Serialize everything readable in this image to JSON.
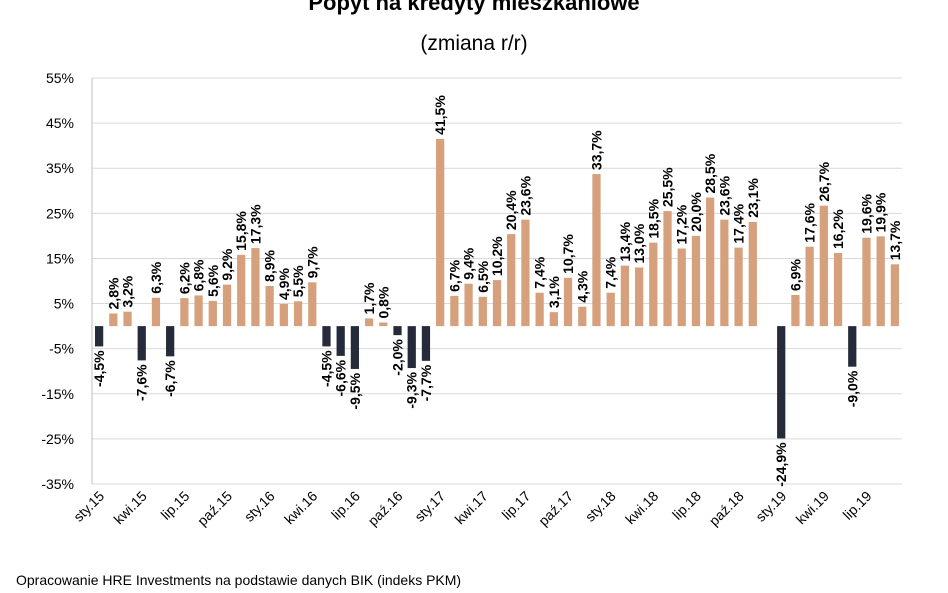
{
  "chart_data": {
    "type": "bar",
    "title": "Popyt na kredyty mieszkaniowe",
    "subtitle": "(zmiana r/r)",
    "xlabel": "",
    "ylabel": "",
    "ylim": [
      -35,
      55
    ],
    "y_ticks": [
      55,
      45,
      35,
      25,
      15,
      5,
      -5,
      -15,
      -25,
      -35
    ],
    "y_tick_labels": [
      "55%",
      "45%",
      "35%",
      "25%",
      "15%",
      "5%",
      "-5%",
      "-15%",
      "-25%",
      "-35%"
    ],
    "grid": true,
    "positive_color": "#d5a07b",
    "negative_color": "#252b3a",
    "x_tick_labels": [
      {
        "index": 0,
        "label": "sty.15"
      },
      {
        "index": 3,
        "label": "kwi.15"
      },
      {
        "index": 6,
        "label": "lip.15"
      },
      {
        "index": 9,
        "label": "paź.15"
      },
      {
        "index": 12,
        "label": "sty.16"
      },
      {
        "index": 15,
        "label": "kwi.16"
      },
      {
        "index": 18,
        "label": "lip.16"
      },
      {
        "index": 21,
        "label": "paź.16"
      },
      {
        "index": 24,
        "label": "sty.17"
      },
      {
        "index": 27,
        "label": "kwi.17"
      },
      {
        "index": 30,
        "label": "lip.17"
      },
      {
        "index": 33,
        "label": "paź.17"
      },
      {
        "index": 36,
        "label": "sty.18"
      },
      {
        "index": 39,
        "label": "kwi.18"
      },
      {
        "index": 42,
        "label": "lip.18"
      },
      {
        "index": 45,
        "label": "paź.18"
      },
      {
        "index": 48,
        "label": "sty.19"
      },
      {
        "index": 51,
        "label": "kwi.19"
      },
      {
        "index": 54,
        "label": "lip.19"
      }
    ],
    "values": [
      -4.5,
      2.8,
      3.2,
      -7.6,
      6.3,
      -6.7,
      6.2,
      6.8,
      5.6,
      9.2,
      15.8,
      17.3,
      8.9,
      4.9,
      5.5,
      9.7,
      -4.5,
      -6.6,
      -9.5,
      1.7,
      0.8,
      -2.0,
      -9.3,
      -7.7,
      41.5,
      6.7,
      9.4,
      6.5,
      10.2,
      20.4,
      23.6,
      7.4,
      3.1,
      10.7,
      4.3,
      33.7,
      7.4,
      13.4,
      13.0,
      18.5,
      25.5,
      17.2,
      20.0,
      28.5,
      23.6,
      17.4,
      23.1,
      null,
      -24.9,
      6.9,
      17.6,
      26.7,
      16.2,
      -9.0,
      19.6,
      19.9,
      13.7
    ],
    "data_labels": [
      "-4,5%",
      "2,8%",
      "3,2%",
      "-7,6%",
      "6,3%",
      "-6,7%",
      "6,2%",
      "6,8%",
      "5,6%",
      "9,2%",
      "15,8%",
      "17,3%",
      "8,9%",
      "4,9%",
      "5,5%",
      "9,7%",
      "-4,5%",
      "-6,6%",
      "-9,5%",
      "1,7%",
      "0,8%",
      "-2,0%",
      "-9,3%",
      "-7,7%",
      "41,5%",
      "6,7%",
      "9,4%",
      "6,5%",
      "10,2%",
      "20,4%",
      "23,6%",
      "7,4%",
      "3,1%",
      "10,7%",
      "4,3%",
      "33,7%",
      "7,4%",
      "13,4%",
      "13,0%",
      "18,5%",
      "25,5%",
      "17,2%",
      "20,0%",
      "28,5%",
      "23,6%",
      "17,4%",
      "23,1%",
      "",
      "-24,9%",
      "6,9%",
      "17,6%",
      "26,7%",
      "16,2%",
      "-9,0%",
      "19,6%",
      "19,9%",
      "13,7%"
    ]
  },
  "source_note": "Opracowanie HRE Investments na podstawie danych BIK (indeks PKM)"
}
